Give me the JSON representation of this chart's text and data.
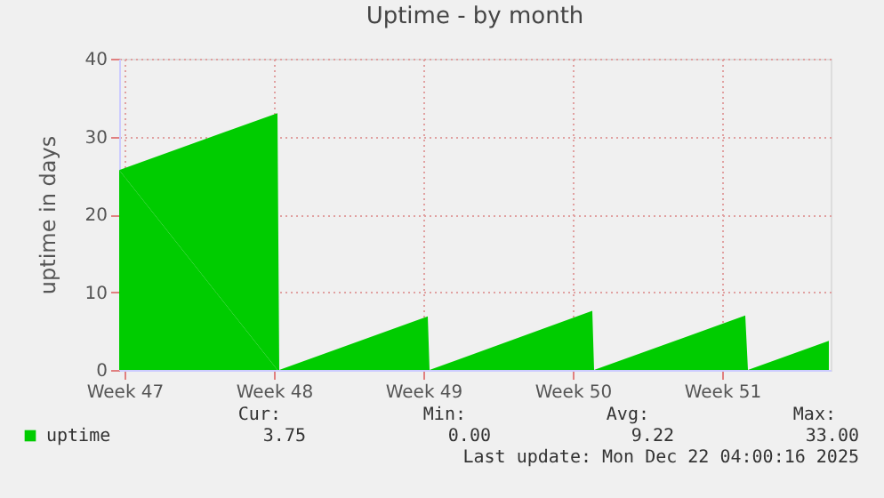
{
  "chart_data": {
    "type": "area",
    "title": "Uptime - by month",
    "ylabel": "uptime in days",
    "x": [
      "2025-11-16T18:00",
      "2025-11-24T04:00",
      "2025-11-24T06:00",
      "2025-12-01T05:00",
      "2025-12-01T07:00",
      "2025-12-08T22:00",
      "2025-12-09T00:00",
      "2025-12-16T02:00",
      "2025-12-16T05:00",
      "2025-12-20T00:00"
    ],
    "series": [
      {
        "name": "uptime",
        "color": "#00cc00",
        "values": [
          25.7,
          33,
          0,
          6.9,
          0,
          7.6,
          0,
          7.0,
          0,
          3.75
        ]
      }
    ],
    "xlim": [
      "2025-11-16T18:00",
      "2025-12-20T02:00"
    ],
    "xticks": [
      {
        "value": "2025-11-17",
        "label": "Week 47"
      },
      {
        "value": "2025-11-24",
        "label": "Week 48"
      },
      {
        "value": "2025-12-01",
        "label": "Week 49"
      },
      {
        "value": "2025-12-08",
        "label": "Week 50"
      },
      {
        "value": "2025-12-15",
        "label": "Week 51"
      }
    ],
    "ylim": [
      0,
      40
    ],
    "yticks": [
      0,
      10,
      20,
      30,
      40
    ],
    "grid": true,
    "legend": "bottom left",
    "annotations": [
      "Cur:",
      "Min:",
      "Avg:",
      "Max:",
      "3.75",
      "0.00",
      "9.22",
      "33.00",
      "Last update: Mon Dec 22 04:00:16 2025"
    ]
  }
}
